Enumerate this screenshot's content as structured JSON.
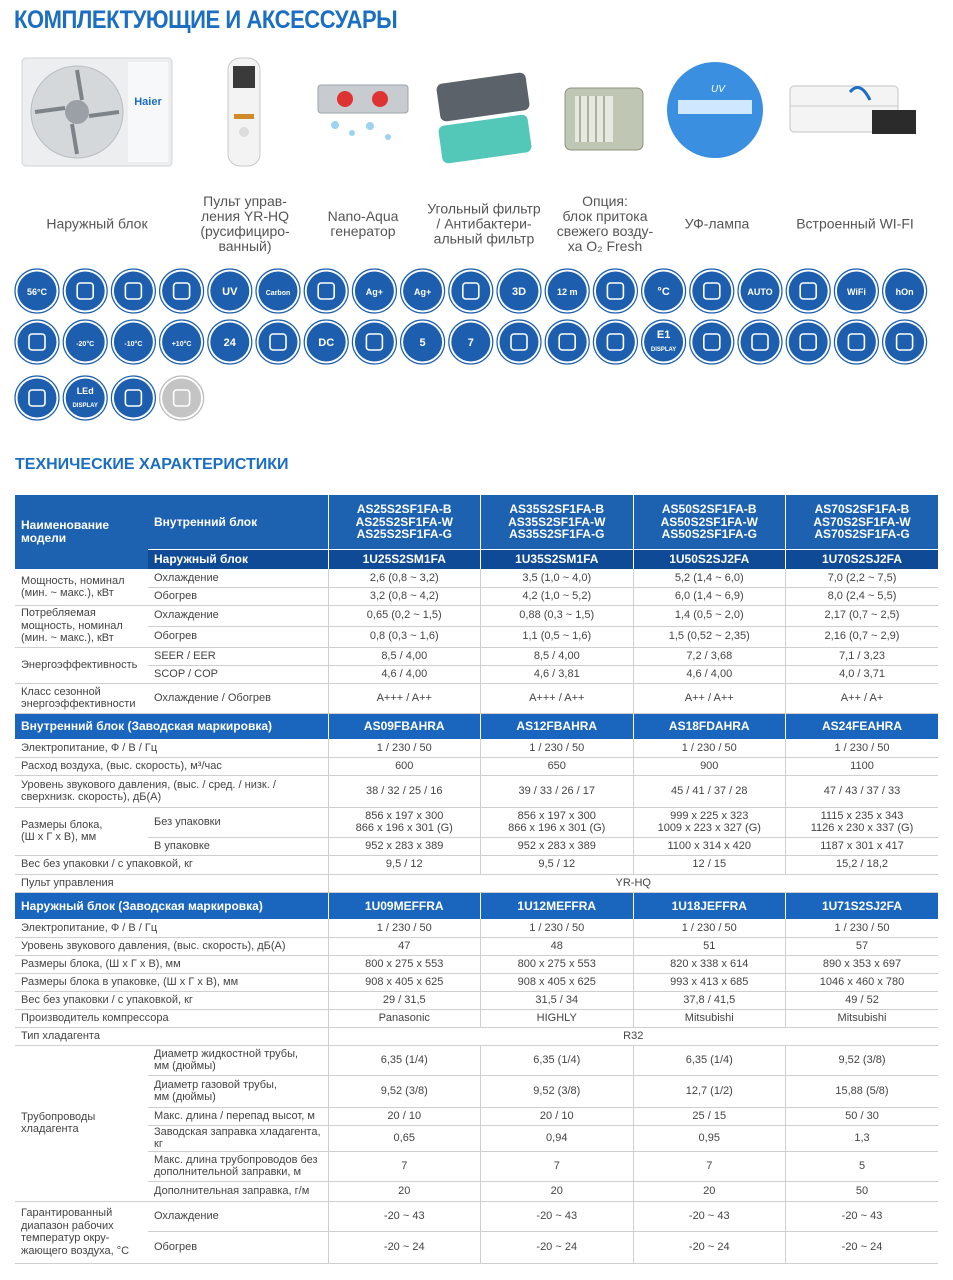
{
  "header": {
    "title": "КОМПЛЕКТУЮЩИЕ И АКСЕССУАРЫ"
  },
  "accessories": [
    "Наружный блок",
    "Пульт управ-\nления YR-HQ\n(русифициро-\nванный)",
    "Nano-Aqua\nгенератор",
    "Угольный фильтр\n/ Антибактери-\nальный фильтр",
    "Опция:\nблок притока\nсвежего возду-\nха O₂ Fresh",
    "УФ-лампа",
    "Встроенный WI-FI"
  ],
  "accessory_image_texts": [
    "Haier",
    "UV"
  ],
  "icons": [
    "56°C",
    "UV",
    "Carbon",
    "Ag+",
    "Ag+",
    "3D",
    "12 m",
    "°C",
    "AUTO",
    "WiFi",
    "hOn",
    "-20°C",
    "-10°C",
    "+10°C",
    "24",
    "DC",
    "5",
    "7",
    "E1",
    "DISPLAY",
    "LEd",
    "DISPLAY"
  ],
  "specs_title": "ТЕХНИЧЕСКИЕ ХАРАКТЕРИСТИКИ",
  "table": {
    "rows": [
      [
        "Наименование\nмодели",
        "Внутренний блок",
        "AS25S2SF1FA-B\nAS25S2SF1FA-W\nAS25S2SF1FA-G",
        "AS35S2SF1FA-B\nAS35S2SF1FA-W\nAS35S2SF1FA-G",
        "AS50S2SF1FA-B\nAS50S2SF1FA-W\nAS50S2SF1FA-G",
        "AS70S2SF1FA-B\nAS70S2SF1FA-W\nAS70S2SF1FA-G"
      ],
      [
        "Наружный блок",
        "1U25S2SM1FA",
        "1U35S2SM1FA",
        "1U50S2SJ2FA",
        "1U70S2SJ2FA"
      ],
      [
        "Мощность, номинал\n(мин. ~ макс.), кВт",
        "Охлаждение",
        "2,6 (0,8 ~ 3,2)",
        "3,5 (1,0 ~ 4,0)",
        "5,2 (1,4 ~ 6,0)",
        "7,0 (2,2 ~ 7,5)"
      ],
      [
        "Обогрев",
        "3,2 (0,8 ~ 4,2)",
        "4,2 (1,0 ~ 5,2)",
        "6,0 (1,4 ~ 6,9)",
        "8,0 (2,4 ~ 5,5)"
      ],
      [
        "Потребляемая\nмощность, номинал\n(мин. ~ макс.), кВт",
        "Охлаждение",
        "0,65 (0,2 ~ 1,5)",
        "0,88 (0,3 ~ 1,5)",
        "1,4 (0,5 ~ 2,0)",
        "2,17 (0,7 ~ 2,5)"
      ],
      [
        "Обогрев",
        "0,8 (0,3 ~ 1,6)",
        "1,1 (0,5 ~ 1,6)",
        "1,5 (0,52 ~ 2,35)",
        "2,16 (0,7 ~ 2,9)"
      ],
      [
        "Энергоэффективность",
        "SEER / EER",
        "8,5 / 4,00",
        "8,5 / 4,00",
        "7,2 / 3,68",
        "7,1 / 3,23"
      ],
      [
        "SCOP / COP",
        "4,6 / 4,00",
        "4,6 / 3,81",
        "4,6 / 4,00",
        "4,0 / 3,71"
      ],
      [
        "Класс сезонной\nэнергоэффективности",
        "Охлаждение / Обогрев",
        "A+++ / A++",
        "A+++ / A++",
        "A++ / A++",
        "A++ / A+"
      ],
      [
        "Внутренний блок (Заводская маркировка)",
        "AS09FBAHRA",
        "AS12FBAHRA",
        "AS18FDAHRA",
        "AS24FEAHRA"
      ],
      [
        "Электропитание, Ф / В / Гц",
        "1 / 230 / 50",
        "1 / 230 / 50",
        "1 / 230 / 50",
        "1 / 230 / 50"
      ],
      [
        "Расход воздуха, (выс. скорость), м³/час",
        "600",
        "650",
        "900",
        "1100"
      ],
      [
        "Уровень звукового давления, (выс. / сред. / низк. /\nсверхнизк. скорость), дБ(А)",
        "38 / 32 / 25 / 16",
        "39 / 33 / 26 / 17",
        "45 / 41 / 37 / 28",
        "47 / 43 / 37 / 33"
      ],
      [
        "Размеры блока,\n(Ш х Г х В), мм",
        "Без упаковки",
        "856 x 197 x 300\n866 x 196 x 301 (G)",
        "856 x 197 x 300\n866 x 196 x 301 (G)",
        "999 x 225 x 323\n1009 x 223 x 327 (G)",
        "1115 x 235 x 343\n1126 x 230 x 337 (G)"
      ],
      [
        "В упаковке",
        "952 x 283 x 389",
        "952 x 283 x 389",
        "1100 x 314 x 420",
        "1187 x 301 x 417"
      ],
      [
        "Вес без упаковки / с упаковкой, кг",
        "9,5 / 12",
        "9,5 / 12",
        "12 / 15",
        "15,2 / 18,2"
      ],
      [
        "Пульт управления",
        "YR-HQ"
      ],
      [
        "Наружный блок (Заводская маркировка)",
        "1U09MEFFRA",
        "1U12MEFFRA",
        "1U18JEFFRA",
        "1U71S2SJ2FA"
      ],
      [
        "Электропитание, Ф / В / Гц",
        "1 / 230 / 50",
        "1 / 230 / 50",
        "1 / 230 / 50",
        "1 / 230 / 50"
      ],
      [
        "Уровень звукового давления, (выс. скорость), дБ(А)",
        "47",
        "48",
        "51",
        "57"
      ],
      [
        "Размеры блока, (Ш х Г х В), мм",
        "800 x 275 x 553",
        "800 x 275 x 553",
        "820 x 338 x 614",
        "890 x 353 x 697"
      ],
      [
        "Размеры блока в упаковке, (Ш х Г х В), мм",
        "908 x 405 x 625",
        "908 x 405 x 625",
        "993 x 413 x 685",
        "1046 x 460 x 780"
      ],
      [
        "Вес без упаковки / с упаковкой, кг",
        "29 / 31,5",
        "31,5 / 34",
        "37,8 / 41,5",
        "49 / 52"
      ],
      [
        "Производитель компрессора",
        "Panasonic",
        "HIGHLY",
        "Mitsubishi",
        "Mitsubishi"
      ],
      [
        "Тип хладагента",
        "R32"
      ],
      [
        "Трубопроводы\nхладагента",
        "Диаметр жидкостной трубы,\nмм (дюймы)",
        "6,35 (1/4)",
        "6,35 (1/4)",
        "6,35 (1/4)",
        "9,52 (3/8)"
      ],
      [
        "Диаметр газовой трубы,\nмм (дюймы)",
        "9,52 (3/8)",
        "9,52 (3/8)",
        "12,7 (1/2)",
        "15,88 (5/8)"
      ],
      [
        "Макс. длина / перепад высот, м",
        "20 / 10",
        "20 / 10",
        "25 / 15",
        "50 / 30"
      ],
      [
        "Заводская заправка хладагента, кг",
        "0,65",
        "0,94",
        "0,95",
        "1,3"
      ],
      [
        "Макс. длина трубопроводов без\nдополнительной заправки, м",
        "7",
        "7",
        "7",
        "5"
      ],
      [
        "Дополнительная заправка, г/м",
        "20",
        "20",
        "20",
        "50"
      ],
      [
        "Гарантированный\nдиапазон рабочих\nтемператур окру-\nжающего воздуха, °C",
        "Охлаждение",
        "-20 ~ 43",
        "-20 ~ 43",
        "-20 ~ 43",
        "-20 ~ 43"
      ],
      [
        "Обогрев",
        "-20 ~ 24",
        "-20 ~ 24",
        "-20 ~ 24",
        "-20 ~ 24"
      ]
    ]
  }
}
